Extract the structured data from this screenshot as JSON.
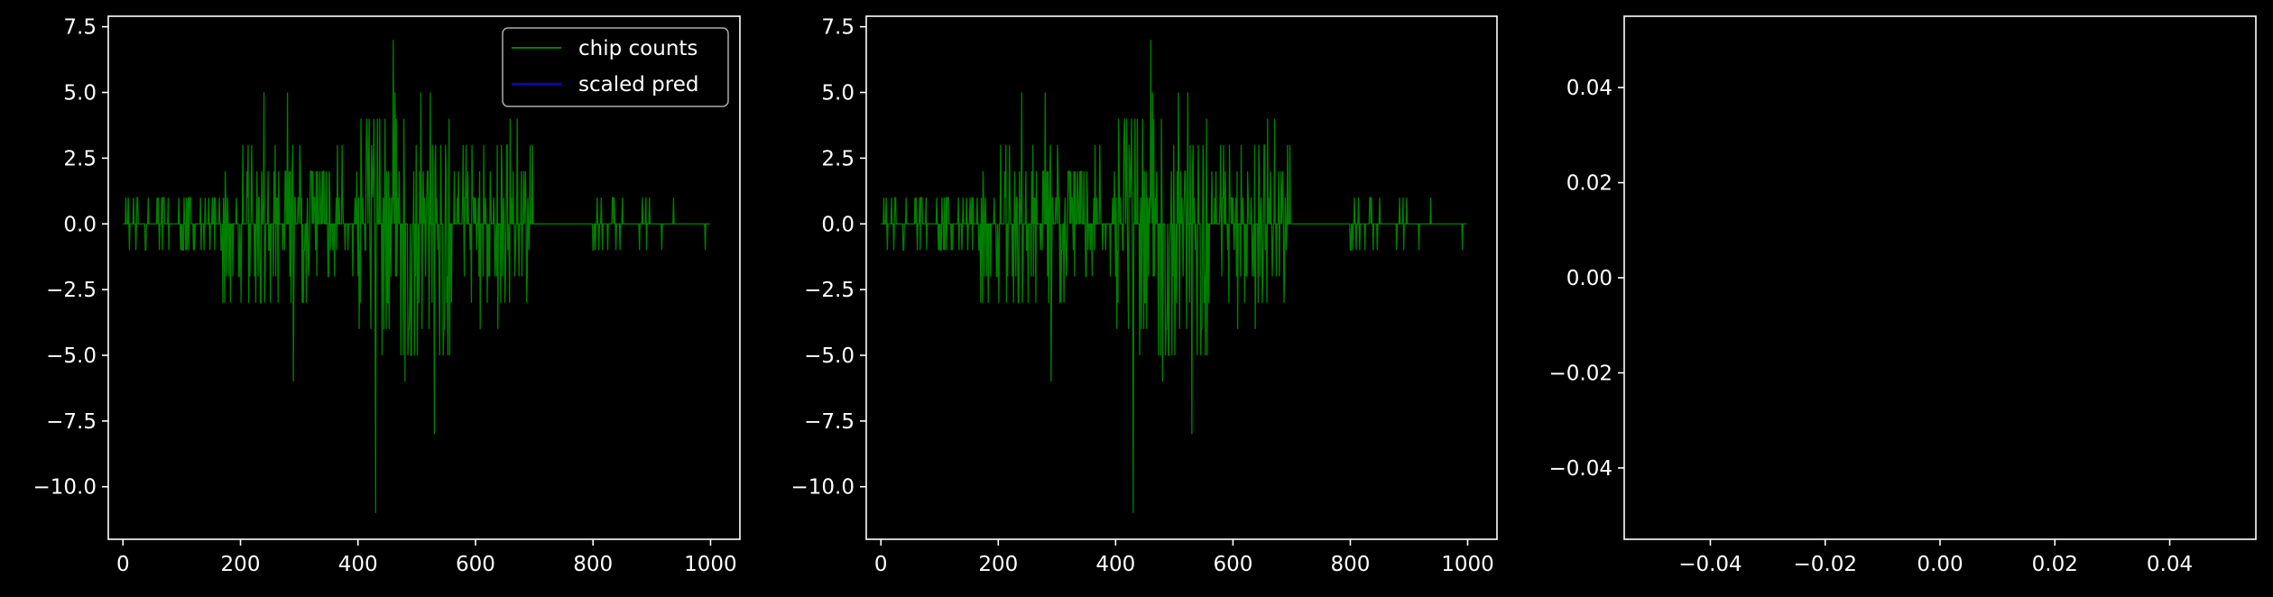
{
  "colors": {
    "background": "#000000",
    "axes_edge": "#ffffff",
    "text": "#ffffff",
    "chip_counts": "#008000",
    "scaled_pred": "#0000ff",
    "legend_face": "#000000",
    "legend_edge": "#aaaaaa"
  },
  "chart_data": [
    {
      "type": "line",
      "title": "",
      "xlabel": "",
      "ylabel": "",
      "xlim": [
        -25,
        1050
      ],
      "ylim": [
        -12,
        7.9
      ],
      "x_ticks": [
        0,
        200,
        400,
        600,
        800,
        1000
      ],
      "x_tick_labels": [
        "0",
        "200",
        "400",
        "600",
        "800",
        "1000"
      ],
      "y_ticks": [
        -10,
        -7.5,
        -5,
        -2.5,
        0,
        2.5,
        5,
        7.5
      ],
      "y_tick_labels": [
        "−10.0",
        "−7.5",
        "−5.0",
        "−2.5",
        "0.0",
        "2.5",
        "5.0",
        "7.5"
      ],
      "grid": false,
      "legend": {
        "placement": "upper-right",
        "entries": [
          {
            "label": "chip counts",
            "color": "#008000"
          },
          {
            "label": "scaled pred",
            "color": "#0000ff"
          }
        ]
      },
      "series": [
        {
          "name": "chip counts",
          "color": "#008000",
          "x_range": [
            0,
            999
          ],
          "peaks": [
            {
              "x": 460,
              "y": 7
            },
            {
              "x": 430,
              "y": -11
            },
            {
              "x": 530,
              "y": -8
            },
            {
              "x": 290,
              "y": -6
            },
            {
              "x": 480,
              "y": -6
            },
            {
              "x": 240,
              "y": 5
            },
            {
              "x": 280,
              "y": 5
            }
          ]
        },
        {
          "name": "scaled pred",
          "color": "#0000ff",
          "values": []
        }
      ]
    },
    {
      "type": "line",
      "title": "",
      "xlabel": "",
      "ylabel": "",
      "xlim": [
        -25,
        1050
      ],
      "ylim": [
        -12,
        7.9
      ],
      "x_ticks": [
        0,
        200,
        400,
        600,
        800,
        1000
      ],
      "x_tick_labels": [
        "0",
        "200",
        "400",
        "600",
        "800",
        "1000"
      ],
      "y_ticks": [
        -10,
        -7.5,
        -5,
        -2.5,
        0,
        2.5,
        5,
        7.5
      ],
      "y_tick_labels": [
        "−10.0",
        "−7.5",
        "−5.0",
        "−2.5",
        "0.0",
        "2.5",
        "5.0",
        "7.5"
      ],
      "grid": false,
      "series": [
        {
          "color": "#008000",
          "x_range": [
            0,
            999
          ],
          "peaks": [
            {
              "x": 460,
              "y": 7
            },
            {
              "x": 430,
              "y": -11
            },
            {
              "x": 530,
              "y": -8
            },
            {
              "x": 290,
              "y": -6
            },
            {
              "x": 480,
              "y": -6
            },
            {
              "x": 240,
              "y": 5
            },
            {
              "x": 280,
              "y": 5
            }
          ]
        }
      ]
    },
    {
      "type": "line",
      "title": "",
      "xlabel": "",
      "ylabel": "",
      "xlim": [
        -0.055,
        0.055
      ],
      "ylim": [
        -0.055,
        0.055
      ],
      "x_ticks": [
        -0.04,
        -0.02,
        0,
        0.02,
        0.04
      ],
      "x_tick_labels": [
        "−0.04",
        "−0.02",
        "0.00",
        "0.02",
        "0.04"
      ],
      "y_ticks": [
        -0.04,
        -0.02,
        0,
        0.02,
        0.04
      ],
      "y_tick_labels": [
        "−0.04",
        "−0.02",
        "0.00",
        "0.02",
        "0.04"
      ],
      "grid": false,
      "series": []
    }
  ]
}
